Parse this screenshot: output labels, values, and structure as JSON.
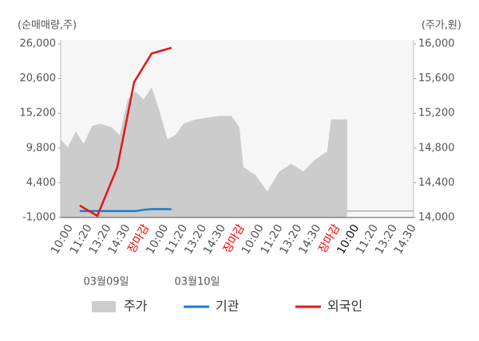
{
  "chart_data": {
    "type": "line",
    "y_axis_label": "(순매매량,주)",
    "y2_axis_label": "(주가,원)",
    "categories": [
      "10:00",
      "11:20",
      "13:20",
      "14:30",
      "장마감",
      "10:00",
      "11:20",
      "13:20",
      "14:30",
      "장마감",
      "10:00",
      "11:20",
      "13:20",
      "14:30",
      "장마감",
      "10:00",
      "11:20",
      "13:20",
      "14:30"
    ],
    "category_colors": [
      "#555",
      "#555",
      "#555",
      "#555",
      "#e00",
      "#555",
      "#555",
      "#555",
      "#555",
      "#e00",
      "#555",
      "#555",
      "#555",
      "#555",
      "#e00",
      "#111",
      "#555",
      "#555",
      "#555"
    ],
    "date_labels": [
      "03월09일",
      "03월10일"
    ],
    "xlim": [
      -0.5,
      18
    ],
    "ylim": [
      -1000,
      26000
    ],
    "yticks": [
      {
        "value": -1000,
        "label": "-1,000"
      },
      {
        "value": 4400,
        "label": "4,400"
      },
      {
        "value": 9800,
        "label": "9,800"
      },
      {
        "value": 15200,
        "label": "15,200"
      },
      {
        "value": 20600,
        "label": "20,600"
      },
      {
        "value": 26000,
        "label": "26,000"
      }
    ],
    "y2lim": [
      14000,
      16000
    ],
    "y2ticks": [
      {
        "value": 14000,
        "label": "14,000"
      },
      {
        "value": 14400,
        "label": "14,400"
      },
      {
        "value": 14800,
        "label": "14,800"
      },
      {
        "value": 15200,
        "label": "15,200"
      },
      {
        "value": 15600,
        "label": "15,600"
      },
      {
        "value": 16000,
        "label": "16,000"
      }
    ],
    "series": [
      {
        "name": "주가",
        "type": "area",
        "axis": "y2",
        "color": "#cccccc",
        "x": [
          -0.5,
          -0.13,
          0.29,
          0.71,
          1.13,
          1.55,
          2.18,
          2.59,
          3.01,
          3.43,
          3.85,
          4.27,
          4.69,
          5.1,
          5.52,
          5.94,
          6.57,
          7.2,
          7.82,
          8.45,
          8.87,
          9.08,
          9.71,
          10.33,
          10.96,
          11.59,
          12.22,
          12.85,
          13.47,
          13.68,
          14.1,
          14.52
        ],
        "values": [
          14900,
          14810,
          14990,
          14850,
          15050,
          15080,
          15040,
          14950,
          15360,
          15450,
          15360,
          15500,
          15220,
          14900,
          14950,
          15080,
          15130,
          15150,
          15170,
          15170,
          15040,
          14580,
          14490,
          14300,
          14530,
          14620,
          14530,
          14670,
          14760,
          15130,
          15130,
          15130
        ]
      },
      {
        "name": "기관",
        "type": "line",
        "color": "#1a7ad4",
        "x": [
          0.5,
          1.42,
          2.47,
          3.43,
          3.85,
          4.27,
          5.31
        ],
        "values": [
          0,
          0,
          0,
          0,
          200,
          300,
          300
        ]
      },
      {
        "name": "외국인",
        "type": "line",
        "color": "#e8141b",
        "x": [
          0.5,
          1.42,
          2.47,
          3.35,
          4.27,
          5.31
        ],
        "values": [
          860,
          -750,
          6800,
          20050,
          24500,
          25380
        ]
      }
    ]
  }
}
